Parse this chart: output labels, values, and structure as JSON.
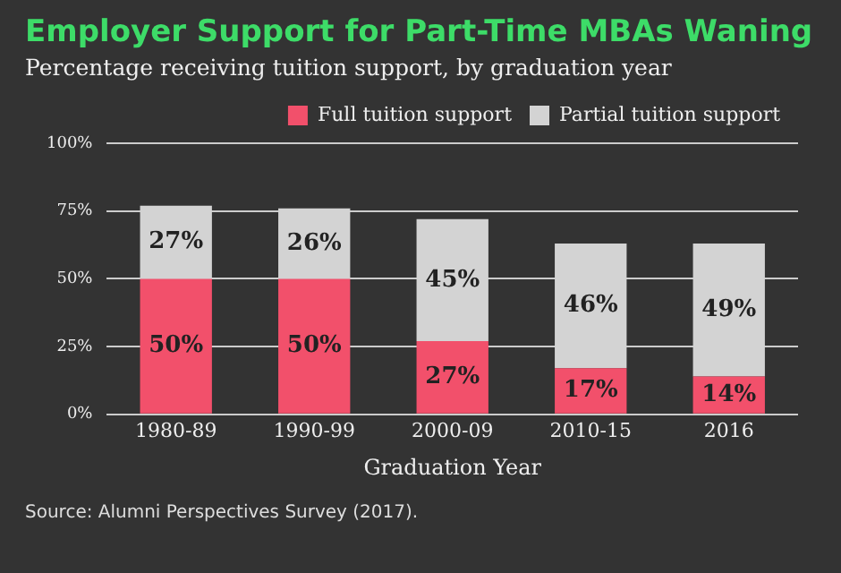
{
  "chart_data": {
    "type": "bar",
    "title": "Employer Support for Part-Time MBAs Waning",
    "subtitle": "Percentage receiving tuition support, by graduation year",
    "xlabel": "Graduation Year",
    "categories": [
      "1980-89",
      "1990-99",
      "2000-09",
      "2010-15",
      "2016"
    ],
    "series": [
      {
        "name": "Full tuition support",
        "color": "#f2506b",
        "values": [
          50,
          50,
          27,
          17,
          14
        ],
        "value_labels": [
          "50%",
          "50%",
          "27%",
          "17%",
          "14%"
        ]
      },
      {
        "name": "Partial tuition support",
        "color": "#d3d3d3",
        "values": [
          27,
          26,
          45,
          46,
          49
        ],
        "value_labels": [
          "27%",
          "26%",
          "45%",
          "46%",
          "49%"
        ]
      }
    ],
    "stacked": true,
    "ylim": [
      0,
      100
    ],
    "yticks": [
      {
        "value": 0,
        "label": "0%"
      },
      {
        "value": 25,
        "label": "25%"
      },
      {
        "value": 50,
        "label": "50%"
      },
      {
        "value": 75,
        "label": "75%"
      },
      {
        "value": 100,
        "label": "100%"
      }
    ],
    "grid": "y",
    "legend": "top right",
    "annotations": [
      "Source: Alumni Perspectives Survey (2017)."
    ]
  }
}
